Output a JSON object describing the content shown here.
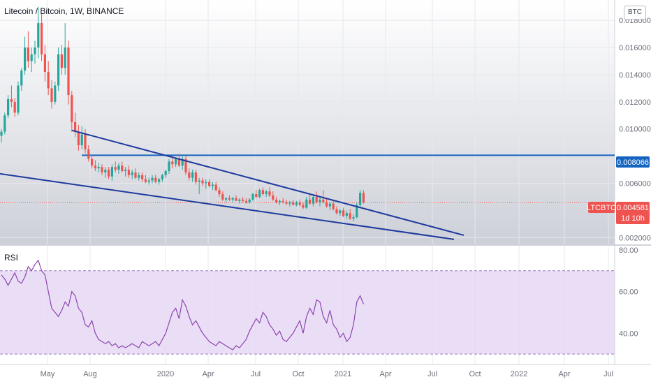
{
  "header": {
    "title": "Litecoin / Bitcoin, 1W, BINANCE",
    "currency": "BTC"
  },
  "rsi_panel": {
    "label": "RSI",
    "ticks": [
      "80.00",
      "60.00",
      "40.00"
    ]
  },
  "colors": {
    "up": "#26a69a",
    "down": "#ef5350",
    "trendline": "#1e3a9e",
    "resistance": "#1565c0",
    "rsi_line": "#8e44ad",
    "rsi_band": "#e6d8f5",
    "last_price": "#ef5350",
    "level_tag": "#1565c0"
  },
  "chart_data": [
    {
      "type": "candlestick",
      "title": "Litecoin / Bitcoin, 1W, BINANCE",
      "ylim": [
        0.0015,
        0.0195
      ],
      "y_ticks": [
        "0.018000",
        "0.016000",
        "0.014000",
        "0.012000",
        "0.010000",
        "0.006000",
        "0.002000"
      ],
      "x_ticks": [
        "May",
        "Aug",
        "2020",
        "Apr",
        "Jul",
        "Oct",
        "2021",
        "Apr",
        "Jul",
        "Oct",
        "2022",
        "Apr",
        "Jul"
      ],
      "price_tags": {
        "symbol": "LTCBTC",
        "last_price": "0.004581",
        "countdown": "1d 10h",
        "resistance_level": "0.008066"
      },
      "candles": [
        [
          0.0095,
          0.01,
          0.009,
          0.0098
        ],
        [
          0.0098,
          0.0112,
          0.0096,
          0.011
        ],
        [
          0.011,
          0.0125,
          0.0108,
          0.0122
        ],
        [
          0.0122,
          0.0132,
          0.0116,
          0.012
        ],
        [
          0.012,
          0.0123,
          0.0109,
          0.0112
        ],
        [
          0.0112,
          0.0135,
          0.011,
          0.0132
        ],
        [
          0.0132,
          0.0145,
          0.0128,
          0.0143
        ],
        [
          0.0143,
          0.0168,
          0.014,
          0.016
        ],
        [
          0.016,
          0.0172,
          0.0145,
          0.015
        ],
        [
          0.015,
          0.016,
          0.0142,
          0.0155
        ],
        [
          0.0155,
          0.0165,
          0.0148,
          0.016
        ],
        [
          0.016,
          0.019,
          0.0152,
          0.0178
        ],
        [
          0.0178,
          0.0185,
          0.015,
          0.0155
        ],
        [
          0.0155,
          0.0162,
          0.0135,
          0.0142
        ],
        [
          0.0142,
          0.015,
          0.0125,
          0.013
        ],
        [
          0.013,
          0.0136,
          0.0115,
          0.012
        ],
        [
          0.012,
          0.0135,
          0.0118,
          0.0132
        ],
        [
          0.0132,
          0.016,
          0.0128,
          0.0155
        ],
        [
          0.0155,
          0.0162,
          0.014,
          0.0145
        ],
        [
          0.0145,
          0.0178,
          0.014,
          0.016
        ],
        [
          0.016,
          0.0165,
          0.0118,
          0.0125
        ],
        [
          0.0125,
          0.0128,
          0.0098,
          0.0105
        ],
        [
          0.0105,
          0.0112,
          0.0094,
          0.0098
        ],
        [
          0.0098,
          0.0103,
          0.0084,
          0.0088
        ],
        [
          0.0088,
          0.0102,
          0.0085,
          0.0096
        ],
        [
          0.0096,
          0.01,
          0.0082,
          0.0085
        ],
        [
          0.0085,
          0.0088,
          0.0076,
          0.0078
        ],
        [
          0.0078,
          0.0081,
          0.0071,
          0.0073
        ],
        [
          0.0073,
          0.0077,
          0.0069,
          0.0071
        ],
        [
          0.0071,
          0.0075,
          0.0068,
          0.0072
        ],
        [
          0.0072,
          0.0074,
          0.0066,
          0.0068
        ],
        [
          0.0068,
          0.0072,
          0.0064,
          0.007
        ],
        [
          0.007,
          0.0072,
          0.0063,
          0.0065
        ],
        [
          0.0065,
          0.0074,
          0.0062,
          0.0072
        ],
        [
          0.0072,
          0.0076,
          0.0068,
          0.007
        ],
        [
          0.007,
          0.0075,
          0.0067,
          0.0073
        ],
        [
          0.0073,
          0.0076,
          0.0068,
          0.0069
        ],
        [
          0.0069,
          0.0072,
          0.0065,
          0.007
        ],
        [
          0.007,
          0.0073,
          0.0064,
          0.0066
        ],
        [
          0.0066,
          0.007,
          0.0063,
          0.0068
        ],
        [
          0.0068,
          0.0071,
          0.0063,
          0.0064
        ],
        [
          0.0064,
          0.0068,
          0.0062,
          0.0066
        ],
        [
          0.0066,
          0.0068,
          0.0061,
          0.0063
        ],
        [
          0.0063,
          0.0066,
          0.006,
          0.0061
        ],
        [
          0.0061,
          0.0064,
          0.0059,
          0.0062
        ],
        [
          0.0062,
          0.0066,
          0.006,
          0.0064
        ],
        [
          0.0064,
          0.0066,
          0.006,
          0.0061
        ],
        [
          0.0061,
          0.0064,
          0.0059,
          0.0063
        ],
        [
          0.0063,
          0.0067,
          0.0061,
          0.0066
        ],
        [
          0.0066,
          0.007,
          0.0064,
          0.0069
        ],
        [
          0.0069,
          0.0078,
          0.0067,
          0.0076
        ],
        [
          0.0076,
          0.008,
          0.0071,
          0.0074
        ],
        [
          0.0074,
          0.0079,
          0.0072,
          0.0078
        ],
        [
          0.0078,
          0.0082,
          0.0072,
          0.0073
        ],
        [
          0.0073,
          0.008,
          0.007,
          0.0078
        ],
        [
          0.0078,
          0.008,
          0.0066,
          0.0068
        ],
        [
          0.0068,
          0.0071,
          0.0062,
          0.0064
        ],
        [
          0.0064,
          0.007,
          0.0061,
          0.0068
        ],
        [
          0.0068,
          0.007,
          0.0059,
          0.0061
        ],
        [
          0.0061,
          0.0064,
          0.0052,
          0.0062
        ],
        [
          0.0062,
          0.0064,
          0.0058,
          0.006
        ],
        [
          0.006,
          0.0063,
          0.0056,
          0.0061
        ],
        [
          0.0061,
          0.0063,
          0.0057,
          0.0058
        ],
        [
          0.0058,
          0.0061,
          0.0055,
          0.0059
        ],
        [
          0.0059,
          0.0061,
          0.0054,
          0.0055
        ],
        [
          0.0055,
          0.0057,
          0.005,
          0.0052
        ],
        [
          0.0052,
          0.0054,
          0.0047,
          0.0048
        ],
        [
          0.0048,
          0.005,
          0.0046,
          0.0049
        ],
        [
          0.0049,
          0.0051,
          0.0047,
          0.0048
        ],
        [
          0.0048,
          0.005,
          0.0046,
          0.0049
        ],
        [
          0.0049,
          0.0051,
          0.0047,
          0.0047
        ],
        [
          0.0047,
          0.0049,
          0.0045,
          0.0048
        ],
        [
          0.0048,
          0.005,
          0.0046,
          0.0047
        ],
        [
          0.0047,
          0.0049,
          0.0045,
          0.0046
        ],
        [
          0.0046,
          0.0049,
          0.0045,
          0.0048
        ],
        [
          0.0048,
          0.0053,
          0.0047,
          0.0052
        ],
        [
          0.0052,
          0.0055,
          0.0049,
          0.005
        ],
        [
          0.005,
          0.0056,
          0.0049,
          0.0055
        ],
        [
          0.0055,
          0.0057,
          0.0051,
          0.0052
        ],
        [
          0.0052,
          0.0055,
          0.005,
          0.0054
        ],
        [
          0.0054,
          0.0057,
          0.005,
          0.0051
        ],
        [
          0.0051,
          0.0054,
          0.0047,
          0.0048
        ],
        [
          0.0048,
          0.005,
          0.0045,
          0.0046
        ],
        [
          0.0046,
          0.0048,
          0.0044,
          0.0047
        ],
        [
          0.0047,
          0.0049,
          0.0045,
          0.0046
        ],
        [
          0.0046,
          0.0048,
          0.0044,
          0.0045
        ],
        [
          0.0045,
          0.0047,
          0.0043,
          0.0046
        ],
        [
          0.0046,
          0.0048,
          0.0044,
          0.0044
        ],
        [
          0.0044,
          0.0047,
          0.0043,
          0.0046
        ],
        [
          0.0046,
          0.0048,
          0.0043,
          0.0044
        ],
        [
          0.0044,
          0.0046,
          0.0041,
          0.0042
        ],
        [
          0.0042,
          0.005,
          0.0041,
          0.0048
        ],
        [
          0.0048,
          0.0052,
          0.0044,
          0.0045
        ],
        [
          0.0045,
          0.0052,
          0.0043,
          0.005
        ],
        [
          0.005,
          0.0054,
          0.0045,
          0.0046
        ],
        [
          0.0046,
          0.005,
          0.0043,
          0.0048
        ],
        [
          0.0048,
          0.0055,
          0.0045,
          0.0046
        ],
        [
          0.0046,
          0.0049,
          0.0042,
          0.0043
        ],
        [
          0.0043,
          0.0046,
          0.004,
          0.0045
        ],
        [
          0.0045,
          0.0047,
          0.004,
          0.0041
        ],
        [
          0.0041,
          0.0043,
          0.0037,
          0.0038
        ],
        [
          0.0038,
          0.0041,
          0.0036,
          0.004
        ],
        [
          0.004,
          0.0042,
          0.0035,
          0.0036
        ],
        [
          0.0036,
          0.004,
          0.0034,
          0.0038
        ],
        [
          0.0038,
          0.0041,
          0.0033,
          0.0034
        ],
        [
          0.0034,
          0.0037,
          0.0032,
          0.0035
        ],
        [
          0.0035,
          0.0046,
          0.0034,
          0.0044
        ],
        [
          0.0044,
          0.0055,
          0.0043,
          0.0053
        ],
        [
          0.0053,
          0.0055,
          0.0045,
          0.0046
        ]
      ],
      "support_line": [
        [
          0,
          0.0067
        ],
        [
          108,
          0.0032
        ]
      ],
      "wedge_lines": [
        [
          [
            21,
            0.0099
          ],
          [
            111,
            0.0032
          ]
        ],
        [
          [
            0,
            0.0067
          ],
          [
            105,
            0.003
          ]
        ]
      ],
      "resistance_line": 0.008066,
      "last_price": 0.004581
    },
    {
      "type": "line",
      "name": "RSI",
      "ylim": [
        25,
        82
      ],
      "band": [
        30,
        70
      ],
      "values": [
        68,
        66,
        63,
        66,
        69,
        65,
        64,
        67,
        72,
        70,
        73,
        75,
        70,
        68,
        60,
        52,
        50,
        48,
        51,
        55,
        53,
        60,
        58,
        52,
        50,
        44,
        43,
        46,
        40,
        37,
        36,
        35,
        36,
        34,
        35,
        33,
        34,
        33,
        34,
        35,
        34,
        33,
        36,
        35,
        34,
        35,
        36,
        34,
        37,
        40,
        45,
        50,
        52,
        47,
        56,
        53,
        48,
        44,
        46,
        43,
        40,
        38,
        36,
        35,
        34,
        36,
        35,
        34,
        33,
        32,
        34,
        33,
        35,
        37,
        41,
        44,
        47,
        45,
        50,
        48,
        44,
        42,
        39,
        41,
        37,
        36,
        38,
        40,
        43,
        46,
        40,
        48,
        52,
        49,
        56,
        55,
        48,
        45,
        51,
        44,
        42,
        38,
        40,
        36,
        38,
        44,
        55,
        58,
        54
      ]
    }
  ]
}
